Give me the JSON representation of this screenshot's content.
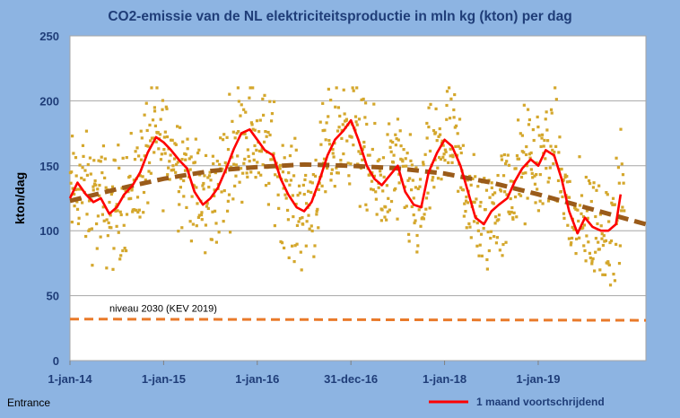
{
  "chart_data": {
    "type": "line",
    "title": "CO2-emissie van de NL elektriciteitsproductie in mln kg (kton) per dag",
    "xlabel": "",
    "ylabel": "kton/dag",
    "ylim": [
      0,
      250
    ],
    "yticks": [
      0,
      50,
      100,
      150,
      200,
      250
    ],
    "x_range_years": [
      2014.0,
      2020.15
    ],
    "xticks": [
      {
        "label": "1-jan-14",
        "year": 2014.0
      },
      {
        "label": "1-jan-15",
        "year": 2015.0
      },
      {
        "label": "1-jan-16",
        "year": 2016.0
      },
      {
        "label": "31-dec-16",
        "year": 2017.0
      },
      {
        "label": "1-jan-18",
        "year": 2018.0
      },
      {
        "label": "1-jan-19",
        "year": 2019.0
      }
    ],
    "grid": true,
    "source_note": "Entrance",
    "legend": {
      "position": "bottom-right",
      "entries": [
        {
          "label": "1 maand voortschrijdend",
          "color": "#ff0000"
        }
      ]
    },
    "annotations": [
      {
        "text": "niveau 2030 (KEV 2019)",
        "series": "target_2030"
      }
    ],
    "series": [
      {
        "name": "dagwaarden",
        "style": "scatter",
        "color": "#d4a72c",
        "generated_from": "1 maand voortschrijdend",
        "spread_kton": 22,
        "points_per_month": 14
      },
      {
        "name": "1 maand voortschrijdend",
        "style": "line",
        "color": "#ff0000",
        "x": [
          2014.0,
          2014.08,
          2014.17,
          2014.25,
          2014.33,
          2014.42,
          2014.5,
          2014.58,
          2014.67,
          2014.75,
          2014.83,
          2014.92,
          2015.0,
          2015.08,
          2015.17,
          2015.25,
          2015.33,
          2015.42,
          2015.5,
          2015.58,
          2015.67,
          2015.75,
          2015.83,
          2015.92,
          2016.0,
          2016.08,
          2016.17,
          2016.25,
          2016.33,
          2016.42,
          2016.5,
          2016.58,
          2016.67,
          2016.75,
          2016.83,
          2016.92,
          2017.0,
          2017.08,
          2017.17,
          2017.25,
          2017.33,
          2017.42,
          2017.5,
          2017.58,
          2017.67,
          2017.75,
          2017.83,
          2017.92,
          2018.0,
          2018.08,
          2018.17,
          2018.25,
          2018.33,
          2018.42,
          2018.5,
          2018.58,
          2018.67,
          2018.75,
          2018.83,
          2018.92,
          2019.0,
          2019.08,
          2019.17,
          2019.25,
          2019.33,
          2019.42,
          2019.5,
          2019.58,
          2019.67,
          2019.75,
          2019.83,
          2019.88
        ],
        "values": [
          125,
          137,
          128,
          122,
          125,
          113,
          118,
          128,
          135,
          145,
          160,
          172,
          168,
          162,
          154,
          148,
          130,
          120,
          125,
          133,
          148,
          163,
          175,
          178,
          170,
          162,
          158,
          140,
          128,
          118,
          115,
          122,
          140,
          158,
          170,
          177,
          185,
          170,
          150,
          140,
          135,
          143,
          150,
          130,
          120,
          118,
          145,
          160,
          170,
          165,
          150,
          130,
          110,
          105,
          115,
          120,
          125,
          138,
          148,
          155,
          150,
          162,
          158,
          140,
          115,
          98,
          110,
          103,
          100,
          100,
          105,
          128
        ]
      },
      {
        "name": "trend",
        "style": "dashed",
        "color": "#9a5b1a",
        "x": [
          2014.0,
          2014.5,
          2015.0,
          2015.5,
          2016.0,
          2016.5,
          2017.0,
          2017.5,
          2018.0,
          2018.5,
          2019.0,
          2019.5,
          2020.15
        ],
        "values": [
          123,
          132,
          140,
          146,
          149,
          151,
          150,
          148,
          144,
          137,
          128,
          118,
          105
        ]
      },
      {
        "name": "target_2030",
        "style": "dashed",
        "color": "#e97a2a",
        "x": [
          2014.0,
          2020.15
        ],
        "values": [
          32,
          31
        ]
      }
    ]
  }
}
